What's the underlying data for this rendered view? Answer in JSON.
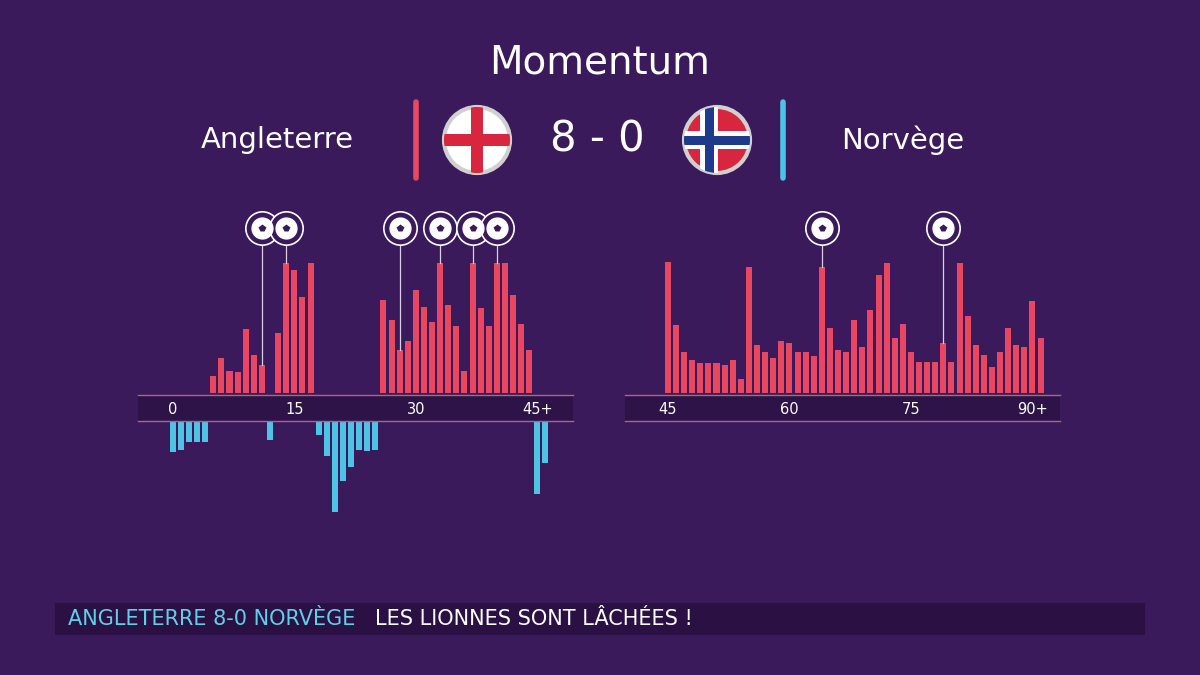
{
  "header": {
    "title": "Momentum",
    "home": "Angleterre",
    "score": "8 - 0",
    "away": "Norvège"
  },
  "chart_data": [
    {
      "type": "bar",
      "x": [
        0,
        1,
        2,
        3,
        4,
        5,
        6,
        7,
        8,
        9,
        10,
        11,
        12,
        13,
        14,
        15,
        16,
        17,
        18,
        19,
        20,
        21,
        22,
        23,
        24,
        25,
        26,
        27,
        28,
        29,
        30,
        31,
        32,
        33,
        34,
        35,
        36,
        37,
        38,
        39,
        40,
        41,
        42,
        43,
        44,
        45,
        46
      ],
      "series": [
        {
          "color": "#e8475f",
          "values": [
            0,
            0,
            0,
            0,
            0,
            13,
            27,
            17,
            16,
            49,
            29,
            21,
            0,
            46,
            99,
            94,
            73,
            99,
            0,
            0,
            0,
            0,
            0,
            0,
            0,
            0,
            71,
            56,
            33,
            40,
            79,
            66,
            54,
            99,
            67,
            51,
            17,
            99,
            65,
            51,
            99,
            99,
            75,
            53,
            33,
            0,
            0
          ]
        },
        {
          "color": "#4dc4e6",
          "values": [
            23,
            21,
            15,
            15,
            15,
            0,
            0,
            0,
            0,
            0,
            0,
            0,
            14,
            0,
            0,
            0,
            0,
            0,
            10,
            26,
            69,
            45,
            34,
            21,
            22,
            21,
            0,
            0,
            0,
            0,
            0,
            0,
            0,
            0,
            0,
            0,
            0,
            0,
            0,
            0,
            0,
            0,
            0,
            0,
            0,
            55,
            31
          ]
        }
      ],
      "goals": [
        11,
        14,
        28,
        33,
        37,
        40
      ],
      "xlim": [
        -4.3,
        49.4
      ],
      "xticks": [
        0,
        15,
        30,
        {
          "value": 45,
          "label": "45+"
        }
      ],
      "ylim": [
        0,
        100
      ],
      "tick_labels": "x"
    },
    {
      "type": "bar",
      "x": [
        45,
        46,
        47,
        48,
        49,
        50,
        51,
        52,
        53,
        54,
        55,
        56,
        57,
        58,
        59,
        60,
        61,
        62,
        63,
        64,
        65,
        66,
        67,
        68,
        69,
        70,
        71,
        72,
        73,
        74,
        75,
        76,
        77,
        78,
        79,
        80,
        81,
        82,
        83,
        84,
        85,
        86,
        87,
        88,
        89,
        90,
        91
      ],
      "series": [
        {
          "color": "#e8475f",
          "values": [
            100,
            52,
            31,
            25,
            23,
            23,
            23,
            21,
            25,
            11,
            96,
            37,
            31,
            27,
            40,
            38,
            31,
            31,
            28,
            96,
            50,
            33,
            31,
            56,
            35,
            63,
            90,
            99,
            42,
            53,
            31,
            24,
            24,
            24,
            38,
            24,
            99,
            59,
            37,
            29,
            20,
            31,
            50,
            37,
            35,
            70,
            42
          ]
        }
      ],
      "goals": [
        64,
        79
      ],
      "xlim": [
        39.7,
        93.4
      ],
      "xticks": [
        45,
        60,
        75,
        {
          "value": 90,
          "label": "90+"
        }
      ],
      "ylim": [
        0,
        100
      ],
      "tick_labels": "x"
    }
  ],
  "banner": {
    "score": "ANGLETERRE 8-0 NORVÈGE",
    "headline": "LES LIONNES SONT LÂCHÉES !"
  }
}
